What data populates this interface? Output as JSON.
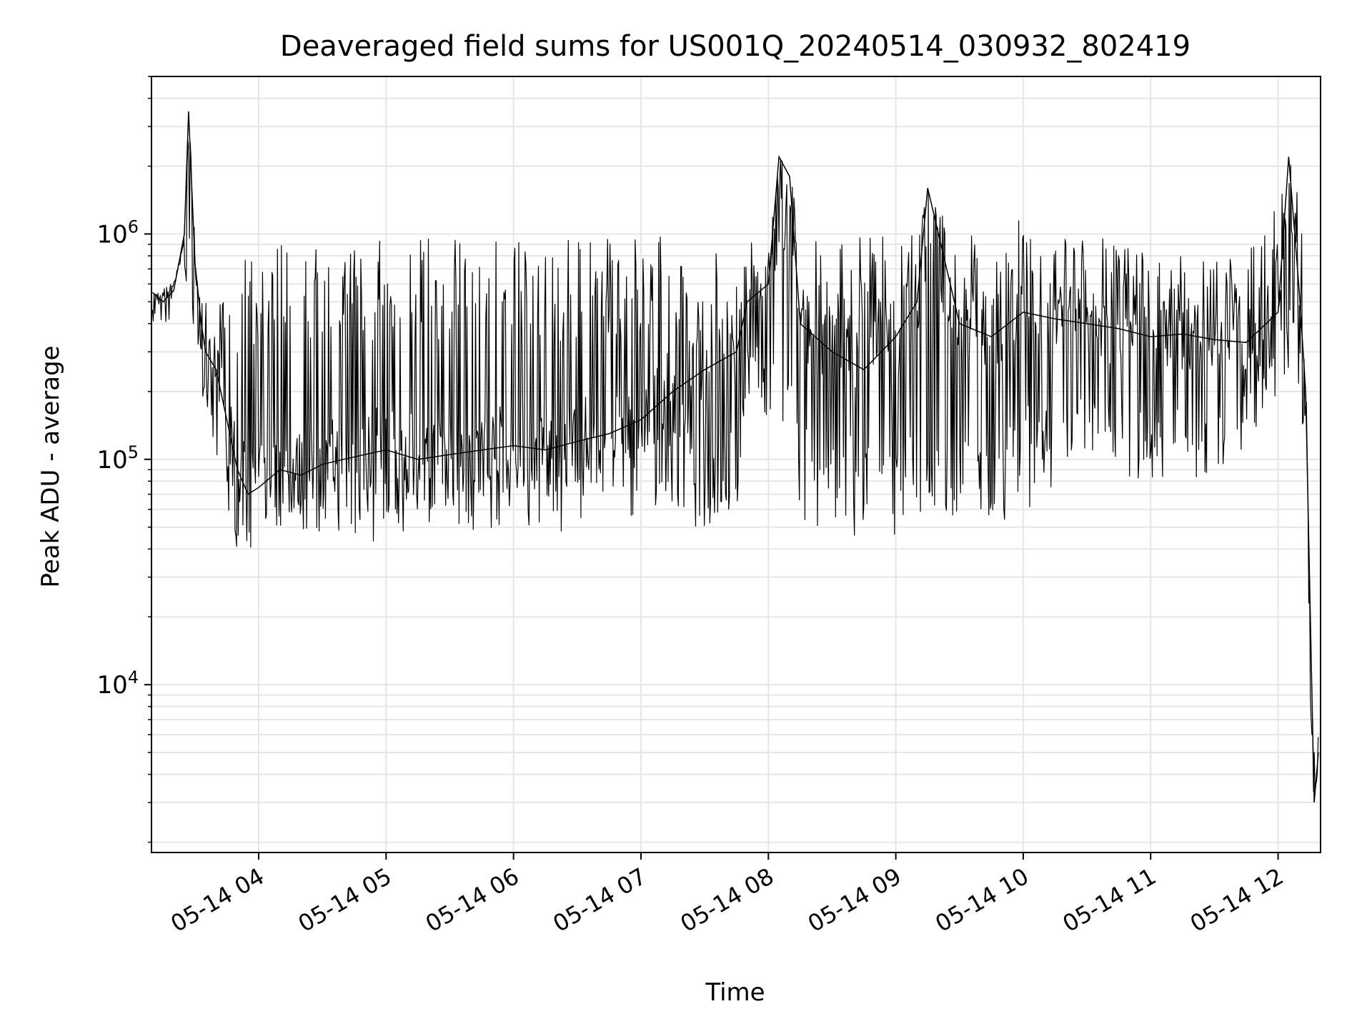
{
  "chart_data": {
    "type": "line",
    "title": "Deaveraged field sums for US001Q_20240514_030932_802419",
    "xlabel": "Time",
    "ylabel": "Peak ADU - average",
    "yscale": "log",
    "ylim": [
      1800,
      5000000
    ],
    "xlim": [
      "2024-05-14 03:09:32",
      "2024-05-14 12:20:00"
    ],
    "grid": true,
    "line_color": "#000000",
    "x_ticks": [
      {
        "label": "05-14 04",
        "value": "2024-05-14 04:00"
      },
      {
        "label": "05-14 05",
        "value": "2024-05-14 05:00"
      },
      {
        "label": "05-14 06",
        "value": "2024-05-14 06:00"
      },
      {
        "label": "05-14 07",
        "value": "2024-05-14 07:00"
      },
      {
        "label": "05-14 08",
        "value": "2024-05-14 08:00"
      },
      {
        "label": "05-14 09",
        "value": "2024-05-14 09:00"
      },
      {
        "label": "05-14 10",
        "value": "2024-05-14 10:00"
      },
      {
        "label": "05-14 11",
        "value": "2024-05-14 11:00"
      },
      {
        "label": "05-14 12",
        "value": "2024-05-14 12:00"
      }
    ],
    "y_ticks": [
      {
        "base": "10",
        "exp": "4",
        "value": 10000
      },
      {
        "base": "10",
        "exp": "5",
        "value": 100000
      },
      {
        "base": "10",
        "exp": "6",
        "value": 1000000
      }
    ],
    "series": [
      {
        "x": [
          "2024-05-14 03:10",
          "2024-05-14 03:15",
          "2024-05-14 03:20",
          "2024-05-14 03:25",
          "2024-05-14 03:27",
          "2024-05-14 03:30",
          "2024-05-14 03:33",
          "2024-05-14 03:35",
          "2024-05-14 03:40",
          "2024-05-14 03:45",
          "2024-05-14 03:50",
          "2024-05-14 03:55",
          "2024-05-14 04:00",
          "2024-05-14 04:10",
          "2024-05-14 04:20",
          "2024-05-14 04:30",
          "2024-05-14 04:40",
          "2024-05-14 04:50",
          "2024-05-14 05:00",
          "2024-05-14 05:15",
          "2024-05-14 05:30",
          "2024-05-14 05:45",
          "2024-05-14 06:00",
          "2024-05-14 06:15",
          "2024-05-14 06:30",
          "2024-05-14 06:45",
          "2024-05-14 07:00",
          "2024-05-14 07:15",
          "2024-05-14 07:30",
          "2024-05-14 07:45",
          "2024-05-14 07:50",
          "2024-05-14 08:00",
          "2024-05-14 08:05",
          "2024-05-14 08:10",
          "2024-05-14 08:15",
          "2024-05-14 08:30",
          "2024-05-14 08:45",
          "2024-05-14 09:00",
          "2024-05-14 09:10",
          "2024-05-14 09:15",
          "2024-05-14 09:30",
          "2024-05-14 09:45",
          "2024-05-14 10:00",
          "2024-05-14 10:15",
          "2024-05-14 10:30",
          "2024-05-14 10:45",
          "2024-05-14 11:00",
          "2024-05-14 11:15",
          "2024-05-14 11:30",
          "2024-05-14 11:45",
          "2024-05-14 12:00",
          "2024-05-14 12:05",
          "2024-05-14 12:10",
          "2024-05-14 12:13",
          "2024-05-14 12:15",
          "2024-05-14 12:17",
          "2024-05-14 12:19"
        ],
        "y": [
          550000,
          500000,
          560000,
          1000000,
          3500000,
          750000,
          400000,
          300000,
          250000,
          150000,
          90000,
          70000,
          75000,
          90000,
          85000,
          95000,
          100000,
          105000,
          110000,
          100000,
          105000,
          110000,
          115000,
          110000,
          120000,
          130000,
          150000,
          200000,
          250000,
          300000,
          500000,
          600000,
          2200000,
          1800000,
          400000,
          300000,
          250000,
          350000,
          500000,
          1600000,
          400000,
          350000,
          450000,
          420000,
          400000,
          380000,
          350000,
          360000,
          340000,
          330000,
          450000,
          2200000,
          550000,
          200000,
          25000,
          3000,
          5000
        ],
        "upper": [
          620000,
          600000,
          620000,
          1000000,
          3500000,
          1000000,
          700000,
          500000,
          500000,
          600000,
          800000,
          900000,
          700000,
          900000,
          950000,
          980000,
          970000,
          960000,
          950000,
          950000,
          950000,
          950000,
          950000,
          950000,
          950000,
          950000,
          960000,
          980000,
          980000,
          980000,
          1000000,
          1000000,
          2200000,
          1900000,
          1000000,
          1000000,
          1000000,
          1000000,
          1050000,
          1600000,
          1050000,
          1000000,
          1300000,
          1000000,
          1000000,
          950000,
          850000,
          800000,
          750000,
          800000,
          1400000,
          2200000,
          1400000,
          600000,
          25000,
          6000,
          6000
        ],
        "lower": [
          400000,
          380000,
          420000,
          600000,
          600000,
          350000,
          200000,
          130000,
          90000,
          50000,
          40000,
          40000,
          42000,
          45000,
          48000,
          45000,
          48000,
          42000,
          42000,
          50000,
          45000,
          48000,
          50000,
          47000,
          45000,
          48000,
          50000,
          50000,
          50000,
          55000,
          200000,
          150000,
          110000,
          100000,
          50000,
          48000,
          45000,
          45000,
          50000,
          60000,
          50000,
          50000,
          60000,
          60000,
          80000,
          80000,
          80000,
          75000,
          90000,
          100000,
          200000,
          250000,
          150000,
          100000,
          10000,
          2500,
          4000
        ]
      }
    ]
  }
}
